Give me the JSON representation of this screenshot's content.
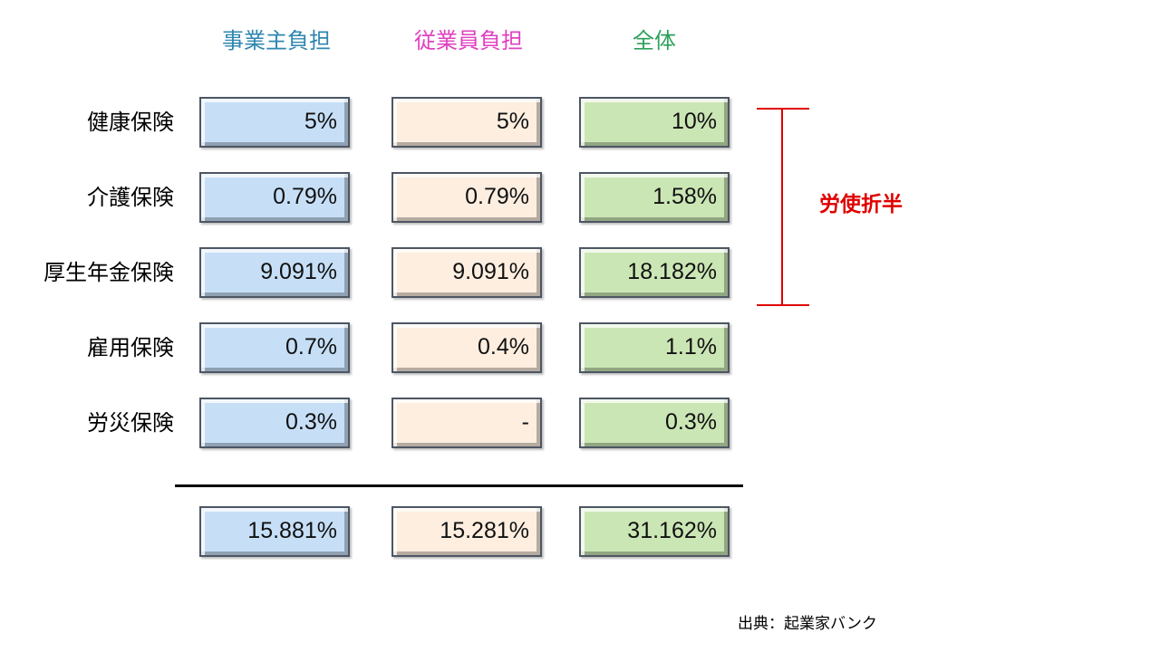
{
  "headers": {
    "employer": "事業主負担",
    "employee": "従業員負担",
    "total": "全体"
  },
  "colors": {
    "employer_header": "#2e86b0",
    "employee_header": "#e040c0",
    "total_header": "#2ea05a",
    "employer_cell": "#c6dff7",
    "employee_cell": "#fdeee0",
    "total_cell": "#cbe6b5",
    "bracket": "#e00000"
  },
  "rows": [
    {
      "label": "健康保険",
      "employer": "5%",
      "employee": "5%",
      "total": "10%"
    },
    {
      "label": "介護保険",
      "employer": "0.79%",
      "employee": "0.79%",
      "total": "1.58%"
    },
    {
      "label": "厚生年金保険",
      "employer": "9.091%",
      "employee": "9.091%",
      "total": "18.182%"
    },
    {
      "label": "雇用保険",
      "employer": "0.7%",
      "employee": "0.4%",
      "total": "1.1%"
    },
    {
      "label": "労災保険",
      "employer": "0.3%",
      "employee": "-",
      "total": "0.3%"
    }
  ],
  "totals": {
    "employer": "15.881%",
    "employee": "15.281%",
    "total": "31.162%"
  },
  "bracket_label": "労使折半",
  "source": "出典：起業家バンク"
}
